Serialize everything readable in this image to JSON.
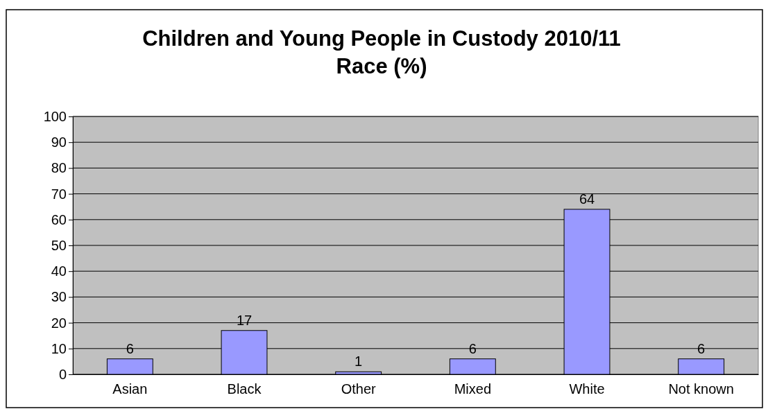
{
  "chart_data": {
    "type": "bar",
    "title": "Children and Young People in Custody 2010/11",
    "subtitle": "Race (%)",
    "categories": [
      "Asian",
      "Black",
      "Other",
      "Mixed",
      "White",
      "Not known"
    ],
    "values": [
      6,
      17,
      1,
      6,
      64,
      6
    ],
    "color": "#9999ff",
    "ylim": [
      0,
      100
    ],
    "yticks": [
      0,
      10,
      20,
      30,
      40,
      50,
      60,
      70,
      80,
      90,
      100
    ],
    "grid": "y",
    "data_labels": true
  }
}
